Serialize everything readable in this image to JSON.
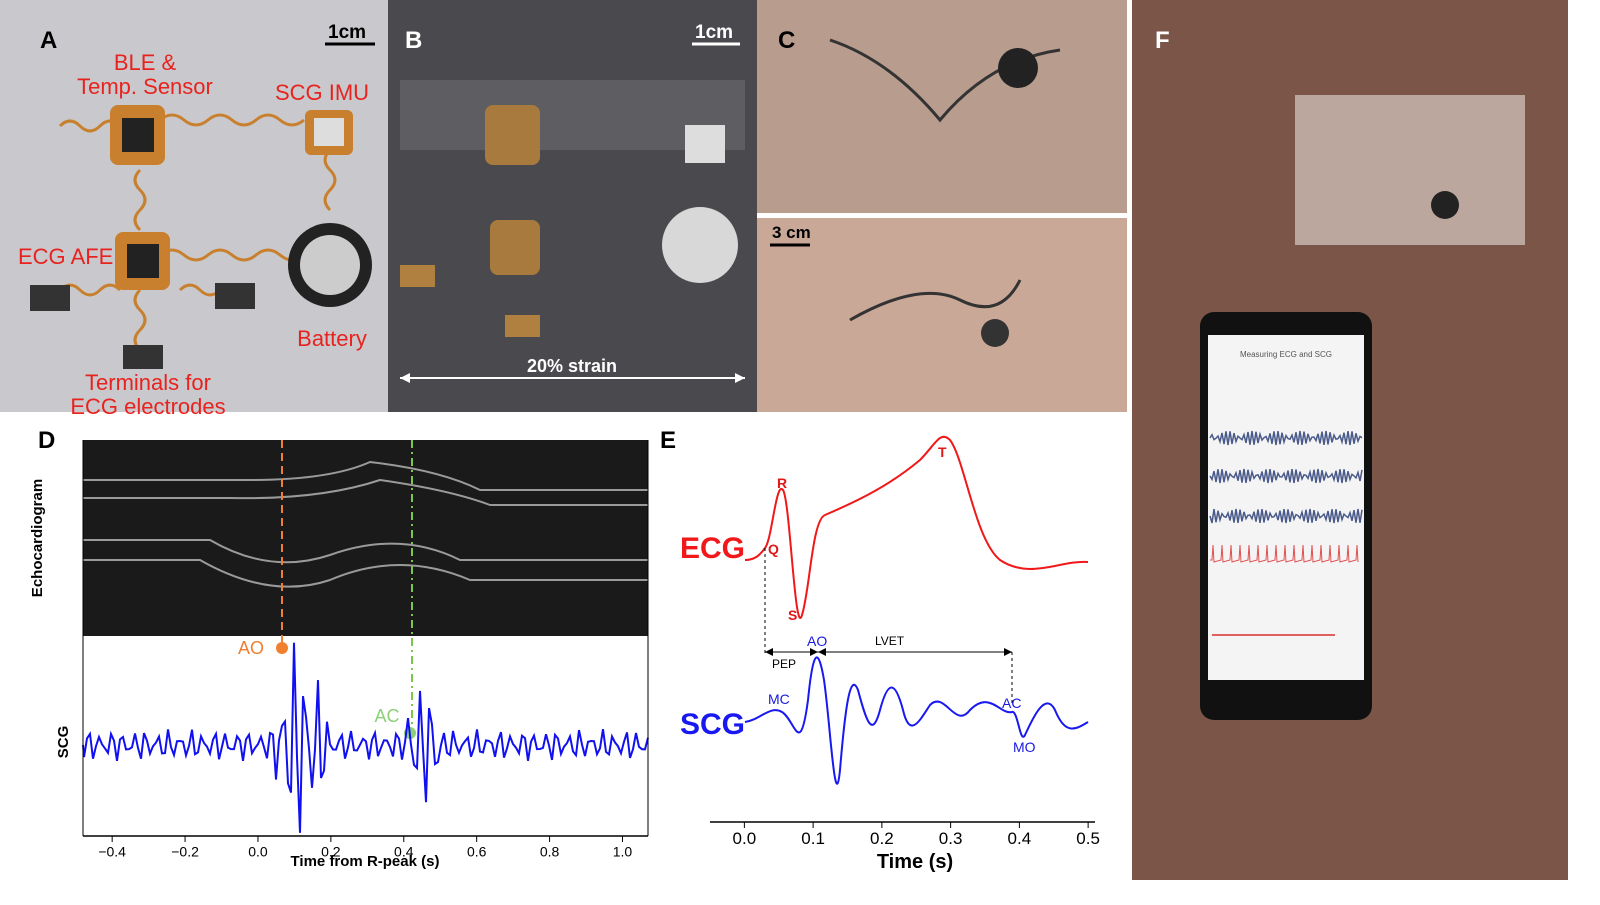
{
  "panel_a": {
    "label": "A",
    "scale_bar": "1cm",
    "labels": [
      "BLE &",
      "Temp. Sensor",
      "SCG IMU",
      "ECG AFE",
      "Battery",
      "Terminals for",
      "ECG electrodes"
    ]
  },
  "panel_b": {
    "label": "B",
    "scale_bar": "1cm",
    "strain": "20% strain"
  },
  "panel_c": {
    "label": "C",
    "scale_bar": "3 cm"
  },
  "panel_d": {
    "label": "D",
    "echo_label": "Echocardiogram",
    "scg_label": "SCG",
    "ao": "AO",
    "ac": "AC",
    "xlabel": "Time from R-peak (s)",
    "xlim": [
      -0.48,
      1.07
    ],
    "xticks": [
      {
        "value": -0.4,
        "label": "−0.4"
      },
      {
        "value": -0.2,
        "label": "−0.2"
      },
      {
        "value": 0,
        "label": "0.0"
      },
      {
        "value": 0.2,
        "label": "0.2"
      },
      {
        "value": 0.4,
        "label": "0.4"
      },
      {
        "value": 0.6,
        "label": "0.6"
      },
      {
        "value": 0.8,
        "label": "0.8"
      },
      {
        "value": 1,
        "label": "1.0"
      }
    ]
  },
  "panel_e": {
    "label": "E",
    "ecg": "ECG",
    "scg": "SCG",
    "points": [
      "R",
      "Q",
      "S",
      "T",
      "AO",
      "MC",
      "AC",
      "MO"
    ],
    "intervals": [
      "PEP",
      "LVET"
    ],
    "xlabel": "Time (s)",
    "xlim": [
      -0.05,
      0.51
    ],
    "xticks": [
      {
        "value": 0,
        "label": "0.0"
      },
      {
        "value": 0.1,
        "label": "0.1"
      },
      {
        "value": 0.2,
        "label": "0.2"
      },
      {
        "value": 0.3,
        "label": "0.3"
      },
      {
        "value": 0.4,
        "label": "0.4"
      },
      {
        "value": 0.5,
        "label": "0.5"
      }
    ]
  },
  "panel_f": {
    "label": "F",
    "phone_title": "Measuring ECG and SCG"
  }
}
